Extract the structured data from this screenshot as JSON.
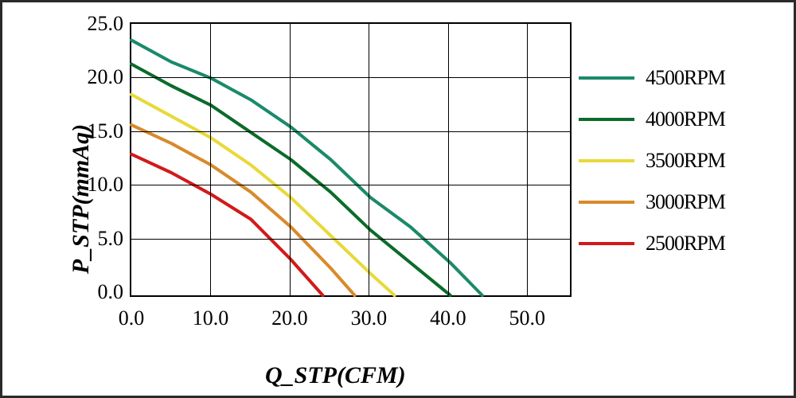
{
  "chart": {
    "type": "line",
    "xlabel": "Q_STP(CFM)",
    "ylabel": "P_STP(mmAq)",
    "label_fontsize": 30,
    "tick_fontsize": 26,
    "font_family": "Times New Roman",
    "background_color": "#ffffff",
    "border_color": "#000000",
    "grid_color": "#000000",
    "line_width": 4,
    "xlim": [
      0,
      55
    ],
    "ylim": [
      0,
      25
    ],
    "xticks": [
      0,
      10,
      20,
      30,
      40,
      50
    ],
    "yticks": [
      0,
      5,
      10,
      15,
      20,
      25
    ],
    "xtick_labels": [
      "0.0",
      "10.0",
      "20.0",
      "30.0",
      "40.0",
      "50.0"
    ],
    "ytick_labels": [
      "0.0",
      "5.0",
      "10.0",
      "15.0",
      "20.0",
      "25.0"
    ],
    "series": [
      {
        "name": "4500RPM",
        "color": "#1a8a6a",
        "x": [
          0,
          5,
          10,
          15,
          20,
          25,
          30,
          35,
          40,
          44
        ],
        "y": [
          23.5,
          21.5,
          20.0,
          18.0,
          15.5,
          12.5,
          9.0,
          6.3,
          3.0,
          0.0
        ]
      },
      {
        "name": "4000RPM",
        "color": "#0b6b2b",
        "x": [
          0,
          5,
          10,
          15,
          20,
          25,
          30,
          35,
          40
        ],
        "y": [
          21.3,
          19.3,
          17.5,
          15.0,
          12.5,
          9.5,
          6.0,
          3.0,
          0.0
        ]
      },
      {
        "name": "3500RPM",
        "color": "#e8d93a",
        "x": [
          0,
          5,
          10,
          15,
          20,
          25,
          30,
          33
        ],
        "y": [
          18.5,
          16.5,
          14.5,
          12.0,
          9.0,
          5.5,
          2.0,
          0.0
        ]
      },
      {
        "name": "3000RPM",
        "color": "#d88a2a",
        "x": [
          0,
          5,
          10,
          15,
          20,
          25,
          28
        ],
        "y": [
          15.7,
          14.0,
          12.0,
          9.5,
          6.3,
          2.5,
          0.0
        ]
      },
      {
        "name": "2500RPM",
        "color": "#d11a1a",
        "x": [
          0,
          5,
          10,
          15,
          20,
          24
        ],
        "y": [
          13.0,
          11.3,
          9.3,
          7.0,
          3.3,
          0.0
        ]
      }
    ]
  }
}
